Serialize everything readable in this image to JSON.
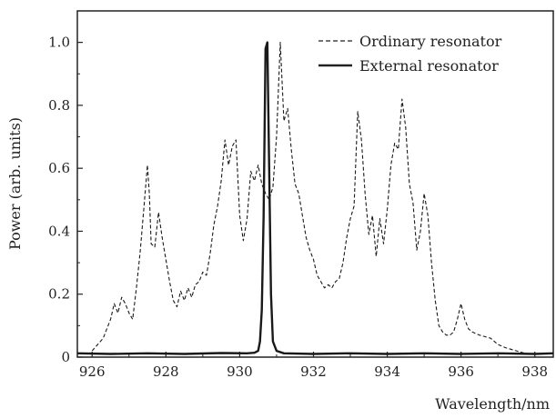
{
  "chart_data": {
    "type": "line",
    "title": "",
    "xlabel": "Wavelength/nm",
    "ylabel": "Power (arb. units)",
    "xlim": [
      925.6,
      938.5
    ],
    "ylim": [
      0,
      1.1
    ],
    "x_ticks": [
      926,
      928,
      930,
      932,
      934,
      936,
      938
    ],
    "y_ticks": [
      0,
      0.2,
      0.4,
      0.6,
      0.8,
      1.0
    ],
    "x_tick_labels": [
      "926",
      "928",
      "930",
      "932",
      "934",
      "936",
      "938"
    ],
    "y_tick_labels": [
      "0",
      "0.2",
      "0.4",
      "0.6",
      "0.8",
      "1.0"
    ],
    "grid": false,
    "legend_position": "top-right",
    "series": [
      {
        "name": "Ordinary resonator",
        "style": "dashed",
        "x": [
          926.0,
          926.3,
          926.5,
          926.6,
          926.7,
          926.8,
          926.9,
          927.0,
          927.1,
          927.2,
          927.3,
          927.4,
          927.5,
          927.55,
          927.6,
          927.7,
          927.8,
          927.9,
          928.0,
          928.1,
          928.2,
          928.3,
          928.4,
          928.5,
          928.6,
          928.7,
          928.8,
          928.9,
          929.0,
          929.1,
          929.2,
          929.3,
          929.4,
          929.5,
          929.6,
          929.7,
          929.8,
          929.9,
          930.0,
          930.1,
          930.2,
          930.3,
          930.4,
          930.5,
          930.6,
          930.7,
          930.8,
          930.9,
          931.0,
          931.1,
          931.2,
          931.3,
          931.4,
          931.5,
          931.6,
          931.7,
          931.8,
          931.9,
          932.0,
          932.1,
          932.2,
          932.3,
          932.4,
          932.5,
          932.6,
          932.7,
          932.8,
          932.9,
          933.0,
          933.1,
          933.2,
          933.3,
          933.4,
          933.5,
          933.6,
          933.7,
          933.8,
          933.9,
          934.0,
          934.1,
          934.2,
          934.3,
          934.4,
          934.5,
          934.6,
          934.7,
          934.8,
          934.9,
          935.0,
          935.1,
          935.2,
          935.3,
          935.4,
          935.5,
          935.6,
          935.7,
          935.8,
          935.9,
          936.0,
          936.1,
          936.2,
          936.3,
          936.5,
          936.8,
          937.0,
          937.2,
          937.5,
          937.8,
          938.0,
          938.5
        ],
        "values": [
          0.02,
          0.06,
          0.12,
          0.17,
          0.14,
          0.19,
          0.17,
          0.14,
          0.12,
          0.22,
          0.33,
          0.47,
          0.61,
          0.52,
          0.36,
          0.35,
          0.46,
          0.38,
          0.31,
          0.24,
          0.18,
          0.16,
          0.21,
          0.18,
          0.22,
          0.19,
          0.23,
          0.24,
          0.27,
          0.26,
          0.33,
          0.42,
          0.48,
          0.56,
          0.69,
          0.61,
          0.67,
          0.69,
          0.45,
          0.37,
          0.44,
          0.59,
          0.56,
          0.61,
          0.55,
          0.52,
          0.5,
          0.54,
          0.7,
          1.0,
          0.75,
          0.79,
          0.66,
          0.55,
          0.52,
          0.45,
          0.38,
          0.34,
          0.31,
          0.26,
          0.24,
          0.22,
          0.23,
          0.22,
          0.24,
          0.25,
          0.3,
          0.38,
          0.44,
          0.48,
          0.78,
          0.69,
          0.52,
          0.39,
          0.45,
          0.32,
          0.44,
          0.36,
          0.47,
          0.61,
          0.68,
          0.66,
          0.82,
          0.73,
          0.55,
          0.49,
          0.34,
          0.4,
          0.52,
          0.45,
          0.3,
          0.18,
          0.1,
          0.08,
          0.07,
          0.07,
          0.08,
          0.12,
          0.17,
          0.12,
          0.09,
          0.08,
          0.07,
          0.06,
          0.04,
          0.03,
          0.02,
          0.01,
          0.01,
          0.01
        ]
      },
      {
        "name": "External resonator",
        "style": "solid",
        "x": [
          925.6,
          926.5,
          927.5,
          928.5,
          929.5,
          930.2,
          930.4,
          930.5,
          930.55,
          930.6,
          930.65,
          930.7,
          930.75,
          930.8,
          930.85,
          930.9,
          931.0,
          931.2,
          932.0,
          933.0,
          934.0,
          935.0,
          936.0,
          937.0,
          938.0,
          938.5
        ],
        "values": [
          0.012,
          0.01,
          0.012,
          0.01,
          0.013,
          0.012,
          0.014,
          0.02,
          0.05,
          0.15,
          0.45,
          0.98,
          1.0,
          0.6,
          0.2,
          0.05,
          0.02,
          0.012,
          0.01,
          0.012,
          0.01,
          0.012,
          0.01,
          0.012,
          0.01,
          0.012
        ]
      }
    ]
  }
}
